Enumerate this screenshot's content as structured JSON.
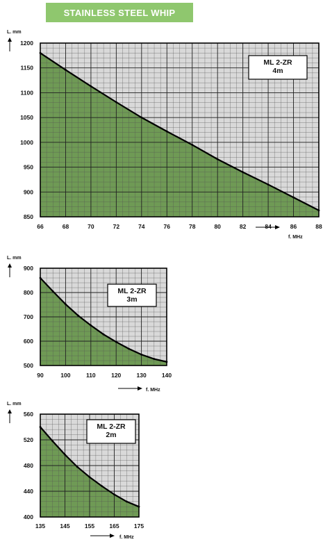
{
  "header": {
    "title": "STAINLESS STEEL WHIP"
  },
  "colors": {
    "badge": "#8fc76e",
    "fill": "#6f9a55",
    "grid": "#555555",
    "background": "#d9d9d9",
    "curve": "#000000"
  },
  "chart_data": [
    {
      "type": "area",
      "box_title": [
        "ML 2-ZR",
        "4m"
      ],
      "ylabel": "L. mm",
      "xlabel": "f. MHz",
      "xlim": [
        66,
        88
      ],
      "ylim": [
        850,
        1200
      ],
      "xticks": [
        66,
        68,
        70,
        72,
        74,
        76,
        78,
        80,
        82,
        84,
        86,
        88
      ],
      "yticks": [
        850,
        900,
        950,
        1000,
        1050,
        1100,
        1150,
        1200
      ],
      "legend_position": "top-right",
      "grid": true,
      "x": [
        66,
        68,
        70,
        72,
        74,
        76,
        78,
        80,
        82,
        84,
        86,
        88
      ],
      "y": [
        1180,
        1146,
        1113,
        1081,
        1050,
        1022,
        995,
        966,
        940,
        915,
        889,
        863
      ]
    },
    {
      "type": "area",
      "box_title": [
        "ML 2-ZR",
        "3m"
      ],
      "ylabel": "L. mm",
      "xlabel": "f. MHz",
      "xlim": [
        90,
        140
      ],
      "ylim": [
        500,
        900
      ],
      "xticks": [
        90,
        100,
        110,
        120,
        130,
        140
      ],
      "yticks": [
        500,
        600,
        700,
        800,
        900
      ],
      "legend_position": "top-right",
      "grid": true,
      "x": [
        90,
        95,
        100,
        105,
        110,
        115,
        120,
        125,
        130,
        135,
        140
      ],
      "y": [
        860,
        805,
        752,
        705,
        665,
        628,
        597,
        569,
        545,
        527,
        515
      ]
    },
    {
      "type": "area",
      "box_title": [
        "ML 2-ZR",
        "2m"
      ],
      "ylabel": "L. mm",
      "xlabel": "f. MHz",
      "xlim": [
        135,
        175
      ],
      "ylim": [
        400,
        560
      ],
      "xticks": [
        135,
        145,
        155,
        165,
        175
      ],
      "yticks": [
        400,
        440,
        480,
        520,
        560
      ],
      "legend_position": "top-right",
      "grid": true,
      "x": [
        135,
        140,
        145,
        150,
        155,
        160,
        165,
        170,
        175
      ],
      "y": [
        540,
        518,
        497,
        478,
        462,
        448,
        435,
        424,
        416
      ]
    }
  ]
}
